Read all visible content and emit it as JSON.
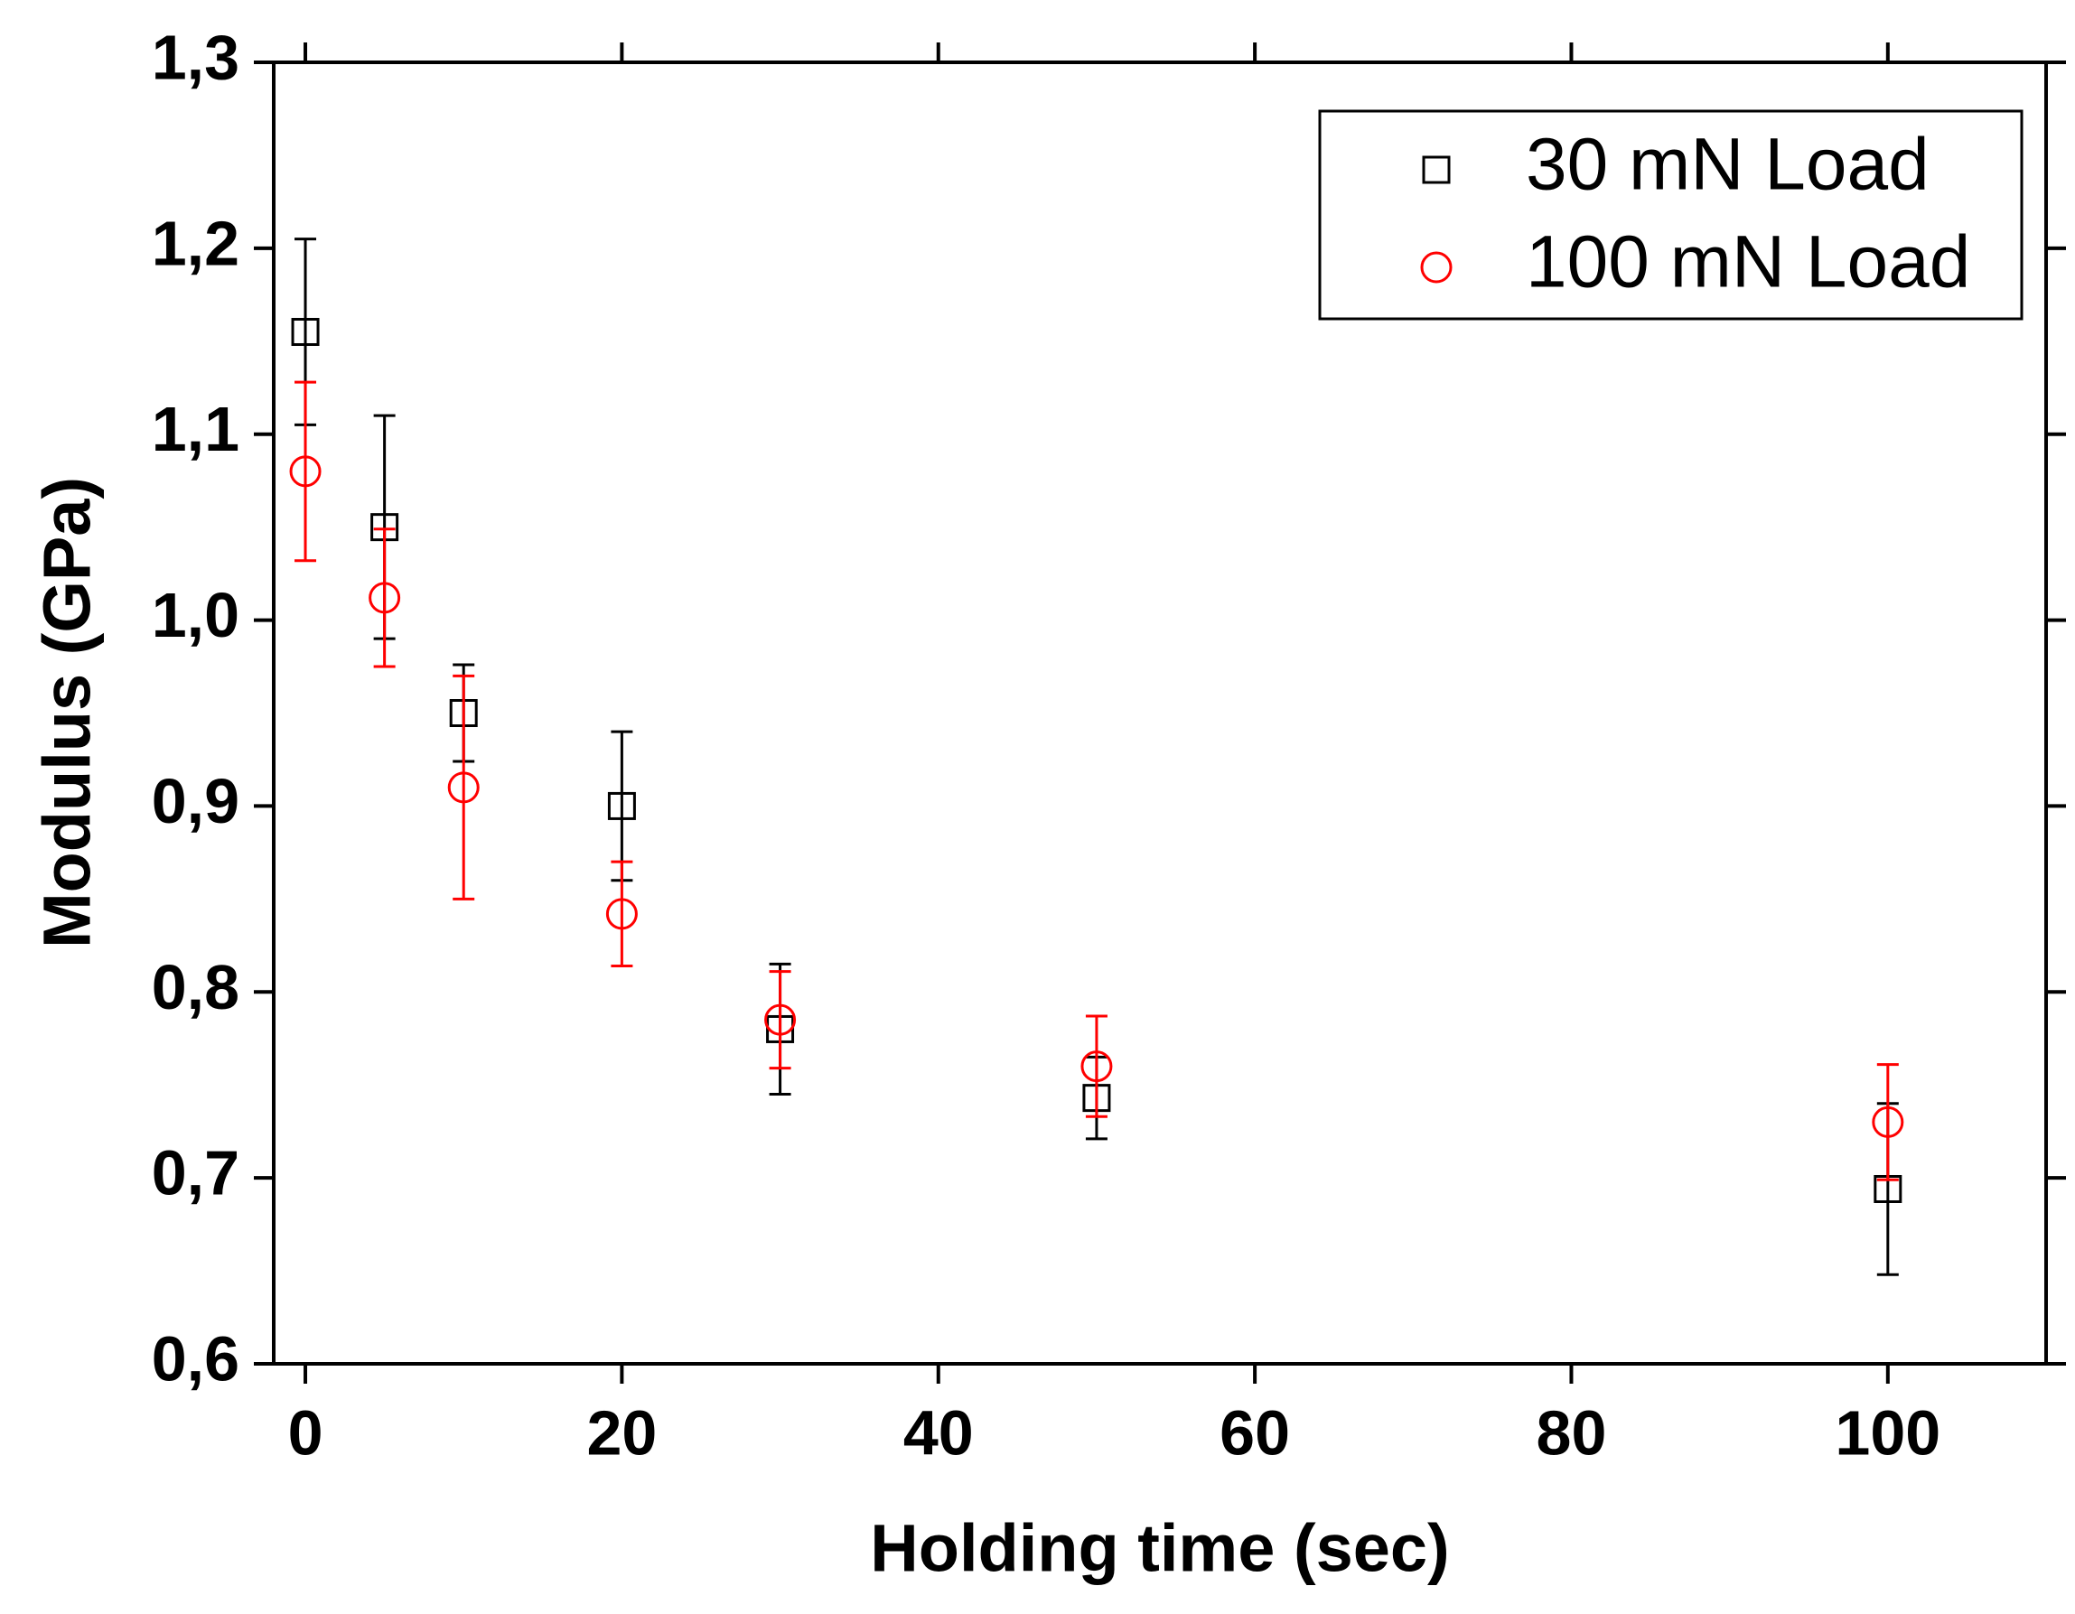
{
  "chart_data": {
    "type": "scatter",
    "xlabel": "Holding time (sec)",
    "ylabel": "Modulus (GPa)",
    "xlim": [
      -2,
      110
    ],
    "xticks": [
      0,
      20,
      40,
      60,
      80,
      100
    ],
    "ylim": [
      0.6,
      1.3
    ],
    "yticks": [
      {
        "value": 0.6,
        "label": "0,6"
      },
      {
        "value": 0.7,
        "label": "0,7"
      },
      {
        "value": 0.8,
        "label": "0,8"
      },
      {
        "value": 0.9,
        "label": "0,9"
      },
      {
        "value": 1.0,
        "label": "1,0"
      },
      {
        "value": 1.1,
        "label": "1,1"
      },
      {
        "value": 1.2,
        "label": "1,2"
      },
      {
        "value": 1.3,
        "label": "1,3"
      }
    ],
    "legend": "top-right",
    "series": [
      {
        "name": "30 mN Load",
        "color": "#000000",
        "marker": "square",
        "x": [
          0,
          5,
          10,
          20,
          30,
          50,
          100
        ],
        "values": [
          1.155,
          1.05,
          0.95,
          0.9,
          0.78,
          0.743,
          0.694
        ],
        "errors": [
          0.05,
          0.06,
          0.026,
          0.04,
          0.035,
          0.022,
          0.046
        ]
      },
      {
        "name": "100 mN Load",
        "color": "#ff0000",
        "marker": "circle",
        "x": [
          0,
          5,
          10,
          20,
          30,
          50,
          100
        ],
        "values": [
          1.08,
          1.012,
          0.91,
          0.842,
          0.785,
          0.76,
          0.73
        ],
        "errors": [
          0.048,
          0.037,
          0.06,
          0.028,
          0.026,
          0.027,
          0.031
        ]
      }
    ]
  }
}
